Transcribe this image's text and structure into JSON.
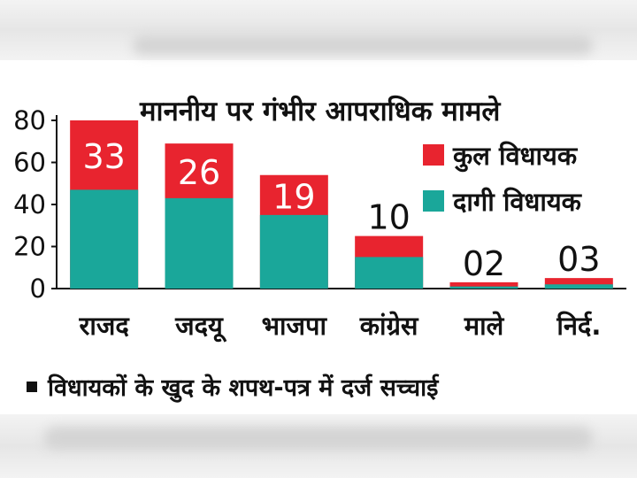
{
  "chart_data": {
    "type": "bar",
    "title": "माननीय पर गंभीर आपराधिक मामले",
    "categories": [
      "राजद",
      "जदयू",
      "भाजपा",
      "कांग्रेस",
      "माले",
      "निर्द."
    ],
    "series": [
      {
        "name": "कुल विधायक",
        "color": "#e8242f",
        "values": [
          80,
          69,
          54,
          25,
          3,
          5
        ]
      },
      {
        "name": "दागी विधायक",
        "color": "#1aa79a",
        "values": [
          47,
          43,
          35,
          15,
          1,
          2
        ]
      }
    ],
    "data_labels": [
      "33",
      "26",
      "19",
      "10",
      "02",
      "03"
    ],
    "ylim": [
      0,
      80
    ],
    "yticks": [
      "0",
      "20",
      "40",
      "60",
      "80"
    ],
    "legend_position": "top-right",
    "grid": false
  },
  "footnote": "विधायकों के खुद के शपथ-पत्र में दर्ज सच्चाई"
}
